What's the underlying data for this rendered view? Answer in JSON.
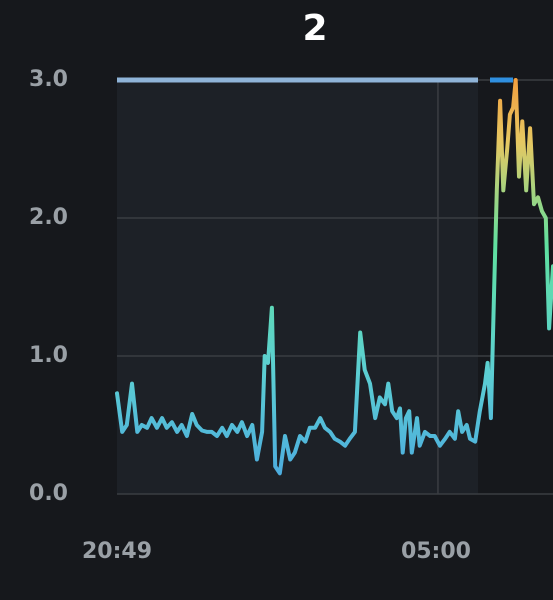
{
  "chart_data": {
    "type": "line",
    "title": "2",
    "x": [
      1249,
      1257,
      1264,
      1272,
      1280,
      1287,
      1295,
      1302,
      1310,
      1318,
      1325,
      1333,
      1341,
      1348,
      1356,
      1364,
      1371,
      1379,
      1387,
      1394,
      1402,
      1410,
      1417,
      1425,
      1433,
      1440,
      1448,
      1456,
      1463,
      1471,
      1475,
      1480,
      1486,
      1491,
      1498,
      1506,
      1514,
      1521,
      1529,
      1537,
      1544,
      1552,
      1560,
      1567,
      1575,
      1582,
      1590,
      1598,
      1605,
      1613,
      1621,
      1628,
      1636,
      1644,
      1651,
      1659,
      1664,
      1670,
      1677,
      1682,
      1686,
      1691,
      1696,
      1700,
      1708,
      1712,
      1720,
      1728,
      1735,
      1743,
      1751,
      1758,
      1766,
      1771,
      1777,
      1784,
      1789,
      1797,
      1804,
      1812,
      1816,
      1821,
      1826,
      1830,
      1835,
      1840,
      1846,
      1850,
      1855,
      1859,
      1864,
      1869,
      1875,
      1881,
      1887,
      1893,
      1899,
      1905,
      1910,
      1916
    ],
    "values": [
      0.73,
      0.45,
      0.5,
      0.8,
      0.45,
      0.5,
      0.48,
      0.55,
      0.48,
      0.55,
      0.48,
      0.52,
      0.45,
      0.5,
      0.42,
      0.58,
      0.5,
      0.46,
      0.45,
      0.45,
      0.42,
      0.48,
      0.42,
      0.5,
      0.45,
      0.52,
      0.42,
      0.5,
      0.25,
      0.45,
      1.0,
      0.95,
      1.35,
      0.2,
      0.15,
      0.42,
      0.25,
      0.3,
      0.42,
      0.38,
      0.48,
      0.48,
      0.55,
      0.48,
      0.45,
      0.4,
      0.38,
      0.35,
      0.4,
      0.45,
      1.17,
      0.9,
      0.8,
      0.55,
      0.7,
      0.65,
      0.8,
      0.6,
      0.55,
      0.62,
      0.3,
      0.55,
      0.6,
      0.3,
      0.55,
      0.35,
      0.45,
      0.42,
      0.42,
      0.35,
      0.4,
      0.45,
      0.4,
      0.6,
      0.45,
      0.5,
      0.4,
      0.38,
      0.6,
      0.8,
      0.95,
      0.55,
      1.5,
      2.2,
      2.85,
      2.2,
      2.5,
      2.75,
      2.8,
      3.0,
      2.3,
      2.7,
      2.2,
      2.65,
      2.1,
      2.15,
      2.05,
      2.0,
      1.2,
      1.65
    ],
    "xlim": [
      1249,
      1916
    ],
    "xticks": [
      {
        "value": 1249,
        "label": "20:49"
      },
      {
        "value": 1740,
        "label": "05:00"
      }
    ],
    "ylim": [
      0,
      3
    ],
    "yticks": [
      {
        "value": 0,
        "label": "0.0"
      },
      {
        "value": 1,
        "label": "1.0"
      },
      {
        "value": 2,
        "label": "2.0"
      },
      {
        "value": 3,
        "label": "3.0"
      }
    ],
    "grid": true
  }
}
